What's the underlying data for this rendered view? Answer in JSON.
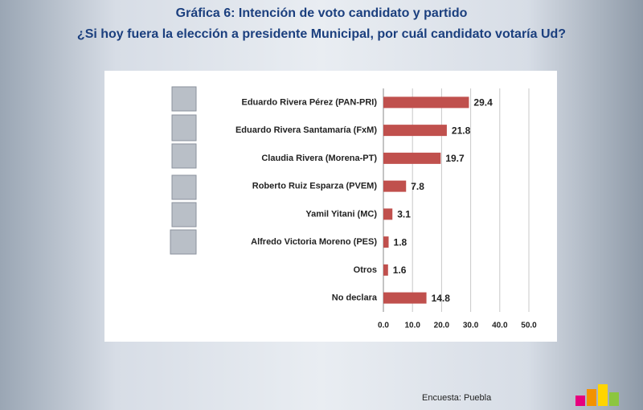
{
  "chart_data": {
    "type": "bar",
    "orientation": "horizontal",
    "title": "Gráfica 6: Intención de voto candidato y partido",
    "subtitle": "¿Si hoy fuera la elección a presidente Municipal, por cuál candidato votaría Ud?",
    "categories": [
      "Eduardo Rivera Pérez (PAN-PRI)",
      "Eduardo Rivera Santamaría (FxM)",
      "Claudia Rivera (Morena-PT)",
      "Roberto Ruiz Esparza (PVEM)",
      "Yamil Yitani (MC)",
      "Alfredo Victoria Moreno (PES)",
      "Otros",
      "No declara"
    ],
    "values": [
      29.4,
      21.8,
      19.7,
      7.8,
      3.1,
      1.8,
      1.6,
      14.8
    ],
    "color": "#c0504d",
    "xlim": [
      0,
      50
    ],
    "xticks": [
      {
        "value": 0,
        "label": "0.0"
      },
      {
        "value": 10,
        "label": "10.0"
      },
      {
        "value": 20,
        "label": "20.0"
      },
      {
        "value": 30,
        "label": "30.0"
      },
      {
        "value": 40,
        "label": "40.0"
      },
      {
        "value": 50,
        "label": "50.0"
      }
    ],
    "grid": true,
    "source": "Encuesta: Puebla"
  }
}
